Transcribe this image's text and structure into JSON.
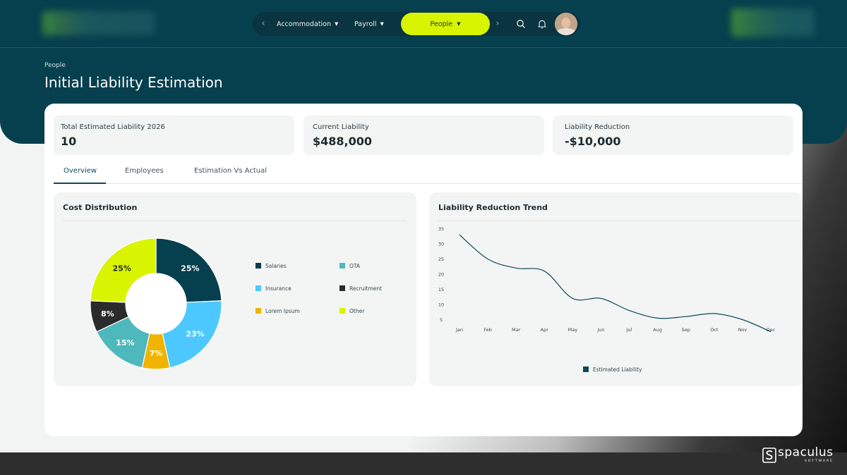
{
  "nav": {
    "items": [
      {
        "label": "Accommodation"
      },
      {
        "label": "Payroll"
      }
    ],
    "active": {
      "label": "People"
    }
  },
  "header": {
    "breadcrumb": "People",
    "title": "Initial Liability Estimation"
  },
  "stats": [
    {
      "label": "Total Estimated Liability 2026",
      "value": "10"
    },
    {
      "label": "Current Liability",
      "value": "$488,000"
    },
    {
      "label": "Liability Reduction",
      "value": "-$10,000"
    }
  ],
  "tabs": [
    {
      "label": "Overview",
      "active": true
    },
    {
      "label": "Employees",
      "active": false
    },
    {
      "label": "Estimation Vs Actual",
      "active": false
    }
  ],
  "brand": {
    "name": "spaculus",
    "sub": "SOFTWARE"
  },
  "icons": [
    "chevron-left-icon",
    "chevron-right-icon",
    "search-icon",
    "bell-icon",
    "caret-down-icon"
  ],
  "colors": {
    "header": "#063f4e",
    "accent": "#d9f400",
    "salaries": "#063f4e",
    "insurance": "#4dc8ff",
    "lorem": "#f0b400",
    "ota": "#4fb8bd",
    "recruitment": "#2b2b2b",
    "other": "#d9f400",
    "line": "#0d4a5a"
  },
  "chart_data": [
    {
      "type": "pie",
      "title": "Cost Distribution",
      "donut": true,
      "slices": [
        {
          "name": "Salaries",
          "value": 25,
          "label": "25%",
          "color": "#063f4e"
        },
        {
          "name": "Insurance",
          "value": 23,
          "label": "23%",
          "color": "#4dc8ff"
        },
        {
          "name": "Lorem Ipsum",
          "value": 7,
          "label": "7%",
          "color": "#f0b400"
        },
        {
          "name": "OTA",
          "value": 15,
          "label": "15%",
          "color": "#4fb8bd"
        },
        {
          "name": "Recruitment",
          "value": 8,
          "label": "8%",
          "color": "#2b2b2b"
        },
        {
          "name": "Other",
          "value": 25,
          "label": "25%",
          "color": "#d9f400"
        }
      ],
      "legend": [
        {
          "name": "Salaries",
          "color": "#063f4e"
        },
        {
          "name": "OTA",
          "color": "#4fb8bd"
        },
        {
          "name": "Insurance",
          "color": "#4dc8ff"
        },
        {
          "name": "Recruitment",
          "color": "#2b2b2b"
        },
        {
          "name": "Lorem Ipsum",
          "color": "#f0b400"
        },
        {
          "name": "Other",
          "color": "#d9f400"
        }
      ],
      "legend_position": "right"
    },
    {
      "type": "line",
      "title": "Liability Reduction Trend",
      "categories": [
        "Jan",
        "Feb",
        "Mar",
        "Apr",
        "May",
        "Jun",
        "Jul",
        "Aug",
        "Sep",
        "Oct",
        "Nov",
        "Dec"
      ],
      "series": [
        {
          "name": "Estimated Liability",
          "values": [
            33,
            25,
            22,
            21,
            12,
            12,
            8,
            5.5,
            6,
            7,
            5,
            1
          ],
          "color": "#0d4a5a"
        }
      ],
      "yticks": [
        35,
        30,
        25,
        20,
        15,
        10,
        5
      ],
      "ylim": [
        0,
        35
      ],
      "grid": false,
      "legend_position": "bottom"
    }
  ]
}
